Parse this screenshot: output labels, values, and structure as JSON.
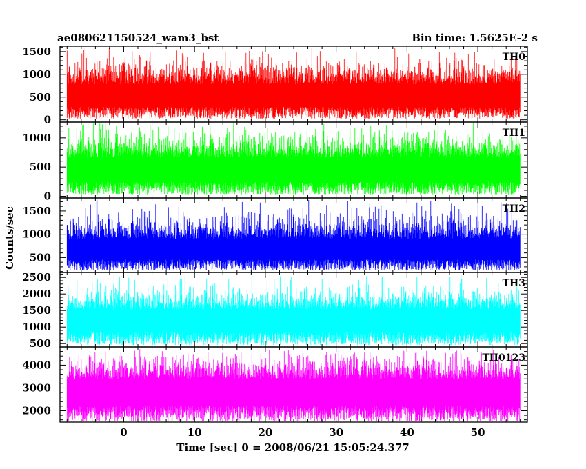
{
  "header": {
    "left_title": "ae080621150524_wam3_bst",
    "right_title": "Bin time: 1.5625E-2 s"
  },
  "chart_data": {
    "type": "line",
    "title": "ae080621150524_wam3_bst",
    "subtitle": "Bin time: 1.5625E-2 s",
    "xlabel": "Time [sec] 0 = 2008/06/21 15:05:24.377",
    "ylabel": "Counts/sec",
    "xlim": [
      -9,
      57
    ],
    "x_ticks": [
      0,
      10,
      20,
      30,
      40,
      50
    ],
    "data_x_range": [
      -8,
      56
    ],
    "grid": false,
    "legend": "none",
    "panels": [
      {
        "name": "TH0",
        "color": "#ff0000",
        "ylim": [
          -50,
          1620
        ],
        "y_ticks": [
          0,
          500,
          1000,
          1500
        ],
        "baseline_min": 30,
        "mean": 600,
        "spread": 330,
        "typical_max": 1150,
        "peak_max": 1600
      },
      {
        "name": "TH1",
        "color": "#00ff00",
        "ylim": [
          -30,
          1270
        ],
        "y_ticks": [
          0,
          500,
          1000
        ],
        "baseline_min": 20,
        "mean": 520,
        "spread": 260,
        "typical_max": 1000,
        "peak_max": 1250
      },
      {
        "name": "TH2",
        "color": "#0000ff",
        "ylim": [
          180,
          1780
        ],
        "y_ticks": [
          500,
          1000,
          1500
        ],
        "baseline_min": 230,
        "mean": 740,
        "spread": 300,
        "typical_max": 1350,
        "peak_max": 1750
      },
      {
        "name": "TH3",
        "color": "#00ffff",
        "ylim": [
          400,
          2650
        ],
        "y_ticks": [
          500,
          1000,
          1500,
          2000,
          2500
        ],
        "baseline_min": 460,
        "mean": 1320,
        "spread": 390,
        "typical_max": 2150,
        "peak_max": 2600
      },
      {
        "name": "TH0123",
        "color": "#ff00ff",
        "ylim": [
          1500,
          4800
        ],
        "y_ticks": [
          2000,
          3000,
          4000
        ],
        "baseline_min": 1540,
        "mean": 3050,
        "spread": 620,
        "typical_max": 4200,
        "peak_max": 4700
      }
    ]
  }
}
